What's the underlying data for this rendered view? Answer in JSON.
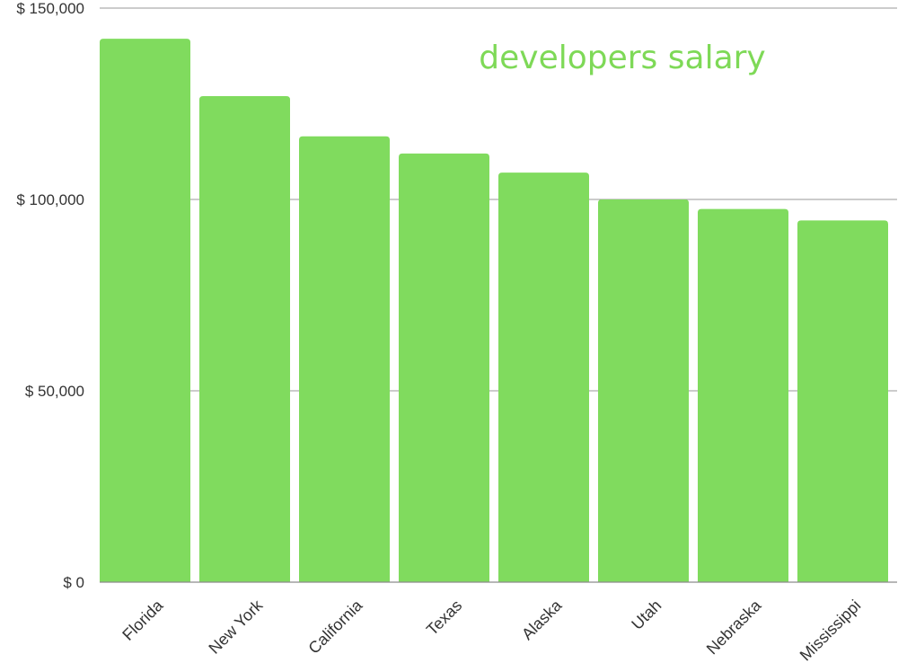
{
  "colors": {
    "bar": "#80db5e",
    "title": "#7ed957",
    "grid": "#9a9a9a",
    "text": "#333333"
  },
  "chart_data": {
    "type": "bar",
    "title": "developers salary",
    "xlabel": "",
    "ylabel": "",
    "categories": [
      "Florida",
      "New York",
      "California",
      "Texas",
      "Alaska",
      "Utah",
      "Nebraska",
      "Mississippi"
    ],
    "values": [
      142000,
      127000,
      116500,
      112000,
      107000,
      100000,
      97500,
      94500
    ],
    "ylim": [
      0,
      150000
    ],
    "yticks": [
      0,
      50000,
      100000,
      150000
    ],
    "ytick_labels": [
      "$ 0",
      "$ 50,000",
      "$ 100,000",
      "$ 150,000"
    ],
    "grid": true,
    "legend": "none"
  }
}
